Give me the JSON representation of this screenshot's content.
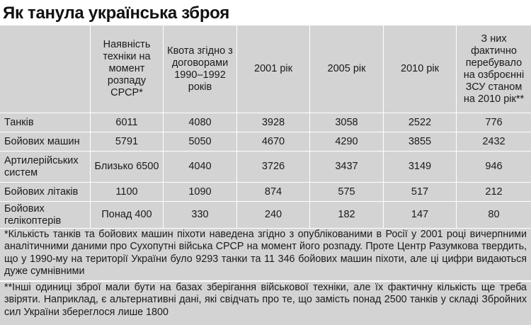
{
  "title": "Як танула українська зброя",
  "table": {
    "headers": [
      "",
      "Наявність техніки на момент розпаду СРСР*",
      "Квота згідно з договорами 1990–1992 років",
      "2001 рік",
      "2005 рік",
      "2010 рік",
      "З них фактично перебувало на озброєнні ЗСУ станом на 2010 рік**"
    ],
    "rows": [
      {
        "label": "Танків",
        "values": [
          "6011",
          "4080",
          "3928",
          "3058",
          "2522",
          "776"
        ]
      },
      {
        "label": "Бойових машин",
        "values": [
          "5791",
          "5050",
          "4670",
          "4290",
          "3855",
          "2432"
        ]
      },
      {
        "label": "Артилерійських систем",
        "values": [
          "Близько 6500",
          "4040",
          "3726",
          "3437",
          "3149",
          "946"
        ]
      },
      {
        "label": "Бойових літаків",
        "values": [
          "1100",
          "1090",
          "874",
          "575",
          "517",
          "212"
        ]
      },
      {
        "label": "Бойових гелікоптерів",
        "values": [
          "Понад 400",
          "330",
          "240",
          "182",
          "147",
          "80"
        ]
      }
    ]
  },
  "notes": [
    "*Кількість танків та бойових машин піхоти наведена згідно з опублікованими в Росії у 2001 році вичерпними аналітичними даними про Сухопутні війська СРСР на момент його розпаду. Проте Центр Разумкова твердить, що у 1990-му на території України було 9293 танки та 11 346 бойових машин піхоти, але ці цифри видаються дуже сумнівними",
    "**Інші одиниці зброї мали бути на базах зберігання військової техніки, але їх фактичну кількість ще треба звіряти. Наприклад, є альтернативні дані, які свідчать про те, що замість понад 2500 танків у складі Збройних сил України збереглося лише 1800"
  ],
  "colors": {
    "panel": "#d3d3d3",
    "grid_lines": "#ffffff",
    "text": "#1a1a1a"
  }
}
